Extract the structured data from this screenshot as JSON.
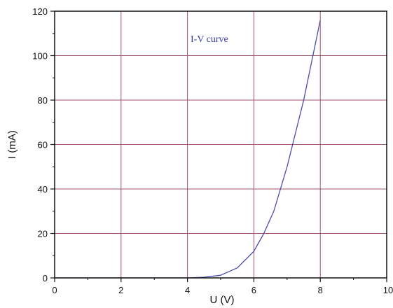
{
  "chart_data": {
    "type": "line",
    "xlabel": "U (V)",
    "ylabel": "I (mA)",
    "xlim": [
      0,
      10
    ],
    "ylim": [
      0,
      120
    ],
    "x_ticks": [
      0,
      2,
      4,
      6,
      8,
      10
    ],
    "y_ticks": [
      0,
      20,
      40,
      60,
      80,
      100,
      120
    ],
    "grid": true,
    "annotation": "I-V curve",
    "series": [
      {
        "x": [
          0,
          2,
          4,
          4.5,
          5,
          5.5,
          6,
          6.3,
          6.6,
          7,
          7.5,
          8
        ],
        "y": [
          0,
          0,
          0,
          0.3,
          1.2,
          4.5,
          12,
          20,
          30,
          50,
          80,
          116
        ]
      }
    ]
  },
  "colors": {
    "grid": "#a3506a",
    "line": "#4a4ab4",
    "axis": "#111111",
    "annotation": "#3a3aaa"
  }
}
